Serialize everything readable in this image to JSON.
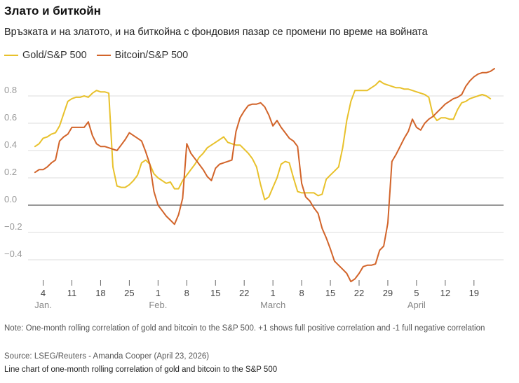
{
  "title": "Злато и биткойн",
  "subtitle": "Връзката и на златото, и на биткойна с фондовия пазар се промени по време на войната",
  "note": "Note: One-month rolling correlation of gold and bitcoin to the S&P 500. +1 shows full positive correlation and -1 full negative correlation",
  "source": "Source: LSEG/Reuters - Amanda Cooper (April 23, 2026)",
  "alt_text": "Line chart of one-month rolling correlation of gold and bitcoin to the S&P 500",
  "colors": {
    "gold": "#e8c12b",
    "bitcoin": "#d2642a"
  },
  "chart_data": {
    "type": "line",
    "y_ticks": [
      0.8,
      0.6,
      0.4,
      0.2,
      0.0,
      -0.2,
      -0.4
    ],
    "y_tick_labels": [
      "0.8",
      "0.6",
      "0.4",
      "0.2",
      "0.0",
      "−0.2",
      "−0.4"
    ],
    "ylim": [
      -0.62,
      1.0
    ],
    "grid": true,
    "legend_position": "top-left",
    "x_range": [
      0,
      115
    ],
    "x_ticks": [
      {
        "day": 3,
        "label": "4"
      },
      {
        "day": 10,
        "label": "11"
      },
      {
        "day": 17,
        "label": "18"
      },
      {
        "day": 24,
        "label": "25"
      },
      {
        "day": 31,
        "label": "1"
      },
      {
        "day": 38,
        "label": "8"
      },
      {
        "day": 45,
        "label": "15"
      },
      {
        "day": 52,
        "label": "22"
      },
      {
        "day": 59,
        "label": "1"
      },
      {
        "day": 66,
        "label": "8"
      },
      {
        "day": 73,
        "label": "15"
      },
      {
        "day": 80,
        "label": "22"
      },
      {
        "day": 87,
        "label": "29"
      },
      {
        "day": 94,
        "label": "5"
      },
      {
        "day": 101,
        "label": "12"
      },
      {
        "day": 108,
        "label": "19"
      }
    ],
    "month_labels": [
      {
        "day": 3,
        "label": "Jan."
      },
      {
        "day": 31,
        "label": "Feb."
      },
      {
        "day": 59,
        "label": "March"
      },
      {
        "day": 94,
        "label": "April"
      }
    ],
    "series": [
      {
        "name": "Gold/S&P 500",
        "color": "#e8c12b",
        "points": [
          [
            1,
            0.43
          ],
          [
            2,
            0.45
          ],
          [
            3,
            0.49
          ],
          [
            4,
            0.5
          ],
          [
            5,
            0.52
          ],
          [
            6,
            0.53
          ],
          [
            7,
            0.58
          ],
          [
            8,
            0.67
          ],
          [
            9,
            0.76
          ],
          [
            10,
            0.78
          ],
          [
            11,
            0.79
          ],
          [
            12,
            0.79
          ],
          [
            13,
            0.8
          ],
          [
            14,
            0.79
          ],
          [
            15,
            0.82
          ],
          [
            16,
            0.84
          ],
          [
            17,
            0.83
          ],
          [
            18,
            0.83
          ],
          [
            19,
            0.82
          ],
          [
            20,
            0.28
          ],
          [
            21,
            0.14
          ],
          [
            22,
            0.13
          ],
          [
            23,
            0.13
          ],
          [
            24,
            0.15
          ],
          [
            25,
            0.18
          ],
          [
            26,
            0.22
          ],
          [
            27,
            0.31
          ],
          [
            28,
            0.33
          ],
          [
            29,
            0.3
          ],
          [
            30,
            0.23
          ],
          [
            31,
            0.2
          ],
          [
            32,
            0.18
          ],
          [
            33,
            0.16
          ],
          [
            34,
            0.17
          ],
          [
            35,
            0.12
          ],
          [
            36,
            0.12
          ],
          [
            37,
            0.18
          ],
          [
            38,
            0.22
          ],
          [
            39,
            0.26
          ],
          [
            40,
            0.3
          ],
          [
            41,
            0.35
          ],
          [
            42,
            0.38
          ],
          [
            43,
            0.42
          ],
          [
            44,
            0.44
          ],
          [
            45,
            0.46
          ],
          [
            46,
            0.48
          ],
          [
            47,
            0.5
          ],
          [
            48,
            0.46
          ],
          [
            49,
            0.45
          ],
          [
            50,
            0.44
          ],
          [
            51,
            0.44
          ],
          [
            52,
            0.41
          ],
          [
            53,
            0.38
          ],
          [
            54,
            0.34
          ],
          [
            55,
            0.28
          ],
          [
            56,
            0.15
          ],
          [
            57,
            0.04
          ],
          [
            58,
            0.06
          ],
          [
            59,
            0.13
          ],
          [
            60,
            0.2
          ],
          [
            61,
            0.3
          ],
          [
            62,
            0.32
          ],
          [
            63,
            0.31
          ],
          [
            64,
            0.2
          ],
          [
            65,
            0.1
          ],
          [
            66,
            0.09
          ],
          [
            67,
            0.09
          ],
          [
            68,
            0.09
          ],
          [
            69,
            0.09
          ],
          [
            70,
            0.07
          ],
          [
            71,
            0.08
          ],
          [
            72,
            0.19
          ],
          [
            73,
            0.22
          ],
          [
            74,
            0.25
          ],
          [
            75,
            0.28
          ],
          [
            76,
            0.42
          ],
          [
            77,
            0.62
          ],
          [
            78,
            0.76
          ],
          [
            79,
            0.84
          ],
          [
            80,
            0.84
          ],
          [
            81,
            0.84
          ],
          [
            82,
            0.84
          ],
          [
            83,
            0.86
          ],
          [
            84,
            0.88
          ],
          [
            85,
            0.91
          ],
          [
            86,
            0.89
          ],
          [
            87,
            0.88
          ],
          [
            88,
            0.87
          ],
          [
            89,
            0.86
          ],
          [
            90,
            0.86
          ],
          [
            91,
            0.85
          ],
          [
            92,
            0.85
          ],
          [
            93,
            0.84
          ],
          [
            94,
            0.83
          ],
          [
            95,
            0.82
          ],
          [
            96,
            0.81
          ],
          [
            97,
            0.79
          ],
          [
            98,
            0.66
          ],
          [
            99,
            0.62
          ],
          [
            100,
            0.64
          ],
          [
            101,
            0.64
          ],
          [
            102,
            0.63
          ],
          [
            103,
            0.63
          ],
          [
            104,
            0.7
          ],
          [
            105,
            0.75
          ],
          [
            106,
            0.76
          ],
          [
            107,
            0.78
          ],
          [
            108,
            0.79
          ],
          [
            109,
            0.8
          ],
          [
            110,
            0.81
          ],
          [
            111,
            0.8
          ],
          [
            112,
            0.78
          ]
        ]
      },
      {
        "name": "Bitcoin/S&P 500",
        "color": "#d2642a",
        "points": [
          [
            1,
            0.24
          ],
          [
            2,
            0.26
          ],
          [
            3,
            0.26
          ],
          [
            4,
            0.28
          ],
          [
            5,
            0.31
          ],
          [
            6,
            0.33
          ],
          [
            7,
            0.47
          ],
          [
            8,
            0.5
          ],
          [
            9,
            0.52
          ],
          [
            10,
            0.57
          ],
          [
            11,
            0.57
          ],
          [
            12,
            0.57
          ],
          [
            13,
            0.57
          ],
          [
            14,
            0.61
          ],
          [
            15,
            0.51
          ],
          [
            16,
            0.45
          ],
          [
            17,
            0.43
          ],
          [
            18,
            0.43
          ],
          [
            19,
            0.42
          ],
          [
            20,
            0.41
          ],
          [
            21,
            0.4
          ],
          [
            22,
            0.44
          ],
          [
            23,
            0.48
          ],
          [
            24,
            0.53
          ],
          [
            25,
            0.51
          ],
          [
            26,
            0.49
          ],
          [
            27,
            0.47
          ],
          [
            28,
            0.39
          ],
          [
            29,
            0.3
          ],
          [
            30,
            0.1
          ],
          [
            31,
            0.0
          ],
          [
            32,
            -0.04
          ],
          [
            33,
            -0.08
          ],
          [
            34,
            -0.11
          ],
          [
            35,
            -0.14
          ],
          [
            36,
            -0.07
          ],
          [
            37,
            0.05
          ],
          [
            38,
            0.45
          ],
          [
            39,
            0.38
          ],
          [
            40,
            0.34
          ],
          [
            41,
            0.3
          ],
          [
            42,
            0.26
          ],
          [
            43,
            0.21
          ],
          [
            44,
            0.18
          ],
          [
            45,
            0.27
          ],
          [
            46,
            0.3
          ],
          [
            47,
            0.31
          ],
          [
            48,
            0.32
          ],
          [
            49,
            0.33
          ],
          [
            50,
            0.54
          ],
          [
            51,
            0.64
          ],
          [
            52,
            0.69
          ],
          [
            53,
            0.73
          ],
          [
            54,
            0.74
          ],
          [
            55,
            0.74
          ],
          [
            56,
            0.75
          ],
          [
            57,
            0.72
          ],
          [
            58,
            0.66
          ],
          [
            59,
            0.58
          ],
          [
            60,
            0.62
          ],
          [
            61,
            0.57
          ],
          [
            62,
            0.53
          ],
          [
            63,
            0.49
          ],
          [
            64,
            0.47
          ],
          [
            65,
            0.43
          ],
          [
            66,
            0.16
          ],
          [
            67,
            0.06
          ],
          [
            68,
            0.03
          ],
          [
            69,
            -0.02
          ],
          [
            70,
            -0.06
          ],
          [
            71,
            -0.17
          ],
          [
            72,
            -0.24
          ],
          [
            73,
            -0.32
          ],
          [
            74,
            -0.41
          ],
          [
            75,
            -0.44
          ],
          [
            76,
            -0.47
          ],
          [
            77,
            -0.5
          ],
          [
            78,
            -0.56
          ],
          [
            79,
            -0.54
          ],
          [
            80,
            -0.5
          ],
          [
            81,
            -0.45
          ],
          [
            82,
            -0.44
          ],
          [
            83,
            -0.44
          ],
          [
            84,
            -0.43
          ],
          [
            85,
            -0.33
          ],
          [
            86,
            -0.3
          ],
          [
            87,
            -0.13
          ],
          [
            88,
            0.32
          ],
          [
            89,
            0.37
          ],
          [
            90,
            0.43
          ],
          [
            91,
            0.49
          ],
          [
            92,
            0.54
          ],
          [
            93,
            0.63
          ],
          [
            94,
            0.57
          ],
          [
            95,
            0.55
          ],
          [
            96,
            0.6
          ],
          [
            97,
            0.63
          ],
          [
            98,
            0.65
          ],
          [
            99,
            0.68
          ],
          [
            100,
            0.71
          ],
          [
            101,
            0.74
          ],
          [
            102,
            0.76
          ],
          [
            103,
            0.78
          ],
          [
            104,
            0.79
          ],
          [
            105,
            0.81
          ],
          [
            106,
            0.87
          ],
          [
            107,
            0.91
          ],
          [
            108,
            0.94
          ],
          [
            109,
            0.96
          ],
          [
            110,
            0.97
          ],
          [
            111,
            0.97
          ],
          [
            112,
            0.98
          ],
          [
            113,
            1.0
          ]
        ]
      }
    ]
  }
}
